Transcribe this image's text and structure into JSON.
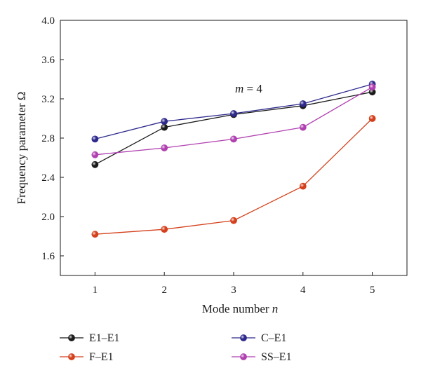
{
  "chart_data": {
    "type": "line",
    "xlabel_prefix": "Mode number ",
    "xlabel_var": "n",
    "ylabel": "Frequency parameter Ω",
    "annotation_var": "m",
    "annotation_rest": " = 4",
    "x": [
      1,
      2,
      3,
      4,
      5
    ],
    "xticks": [
      "1",
      "2",
      "3",
      "4",
      "5"
    ],
    "yticks": [
      "1.6",
      "2.0",
      "2.4",
      "2.8",
      "3.2",
      "3.6",
      "4.0"
    ],
    "xlim": [
      0.5,
      5.5
    ],
    "ylim": [
      1.4,
      4.0
    ],
    "grid": false,
    "legend_position": "bottom",
    "series": [
      {
        "name": "E1–E1",
        "color": "#1a1a1a",
        "values": [
          2.53,
          2.91,
          3.04,
          3.13,
          3.27
        ]
      },
      {
        "name": "C–E1",
        "color": "#2e2a8c",
        "values": [
          2.79,
          2.97,
          3.05,
          3.15,
          3.35
        ]
      },
      {
        "name": "F–E1",
        "color": "#d4401c",
        "values": [
          1.82,
          1.87,
          1.96,
          2.31,
          3.0
        ]
      },
      {
        "name": "SS–E1",
        "color": "#b040b0",
        "values": [
          2.63,
          2.7,
          2.79,
          2.91,
          3.32
        ]
      }
    ]
  }
}
